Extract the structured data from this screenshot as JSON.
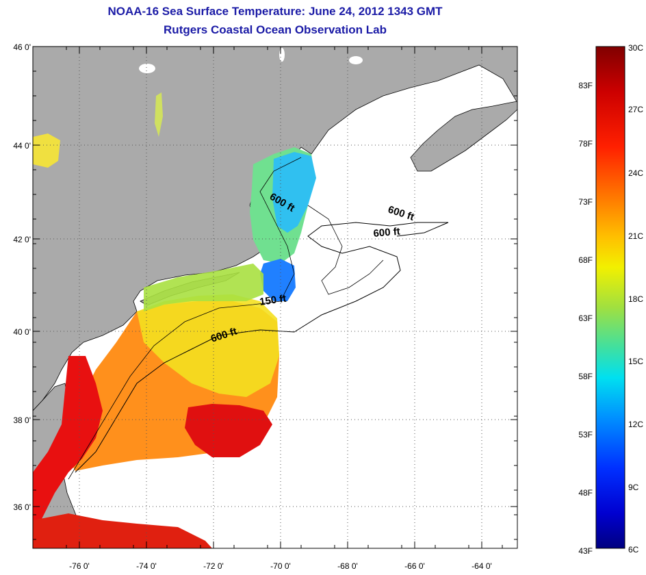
{
  "title": "NOAA-16 Sea Surface Temperature:  June 24, 2012 1343 GMT",
  "subtitle": "Rutgers Coastal Ocean Observation Lab",
  "map": {
    "lat_ticks": [
      "46 0'",
      "44 0'",
      "42 0'",
      "40 0'",
      "38 0'",
      "36 0'"
    ],
    "lon_ticks": [
      "-76 0'",
      "-74 0'",
      "-72 0'",
      "-70 0'",
      "-68 0'",
      "-66 0'",
      "-64 0'"
    ],
    "contour_labels": [
      "600 ft",
      "600 ft",
      "600 ft",
      "150 ft",
      "600 ft"
    ],
    "colors": {
      "land": "#aaaaaa",
      "cloud": "#ffffff",
      "coast": "#000000"
    }
  },
  "colorbar": {
    "f_labels": [
      "83F",
      "78F",
      "73F",
      "68F",
      "63F",
      "58F",
      "53F",
      "48F",
      "43F"
    ],
    "c_labels": [
      "30C",
      "27C",
      "24C",
      "21C",
      "18C",
      "15C",
      "12C",
      "9C",
      "6C"
    ],
    "colors": [
      "#800000",
      "#d00000",
      "#ff2a00",
      "#ff8000",
      "#ffc000",
      "#f0f000",
      "#a8e030",
      "#40e0a0",
      "#00e0ff",
      "#0090ff",
      "#0030ff",
      "#0000d0",
      "#000080"
    ]
  }
}
